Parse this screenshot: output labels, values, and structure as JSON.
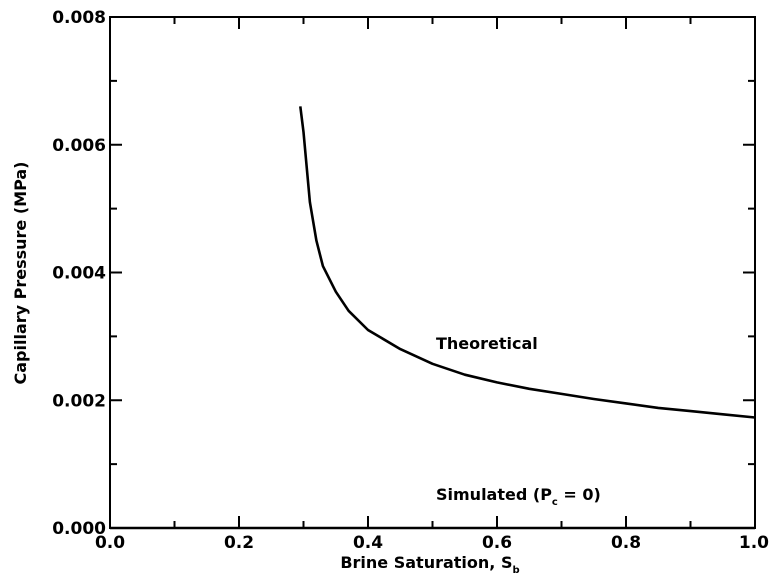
{
  "chart_data": {
    "type": "line",
    "xlabel_main": "Brine Saturation, S",
    "xlabel_sub": "b",
    "ylabel": "Capillary Pressure (MPa)",
    "xlim": [
      0.0,
      1.0
    ],
    "ylim": [
      0.0,
      0.008
    ],
    "x_ticks": [
      "0.0",
      "0.2",
      "0.4",
      "0.6",
      "0.8",
      "1.0"
    ],
    "y_ticks": [
      "0.000",
      "0.002",
      "0.004",
      "0.006",
      "0.008"
    ],
    "x_tick_values": [
      0.0,
      0.2,
      0.4,
      0.6,
      0.8,
      1.0
    ],
    "y_tick_values": [
      0.0,
      0.002,
      0.004,
      0.006,
      0.008
    ],
    "x_minor_tick_values": [
      0.1,
      0.3,
      0.5,
      0.7,
      0.9
    ],
    "y_minor_tick_values": [
      0.001,
      0.003,
      0.005,
      0.007
    ],
    "grid": false,
    "series": [
      {
        "label": "Theoretical",
        "x": [
          0.295,
          0.3,
          0.31,
          0.32,
          0.33,
          0.35,
          0.37,
          0.4,
          0.45,
          0.5,
          0.55,
          0.6,
          0.65,
          0.7,
          0.75,
          0.8,
          0.85,
          0.9,
          0.95,
          1.0
        ],
        "y": [
          0.0066,
          0.0062,
          0.0051,
          0.0045,
          0.0041,
          0.0037,
          0.0034,
          0.0031,
          0.0028,
          0.00257,
          0.0024,
          0.00228,
          0.00218,
          0.0021,
          0.00202,
          0.00195,
          0.00188,
          0.00183,
          0.00178,
          0.00173
        ]
      },
      {
        "label_main": "Simulated  (P",
        "label_sub": "c",
        "label_tail": "  =  0)",
        "x": [
          0.0,
          1.0
        ],
        "y": [
          0.0,
          0.0
        ]
      }
    ]
  }
}
